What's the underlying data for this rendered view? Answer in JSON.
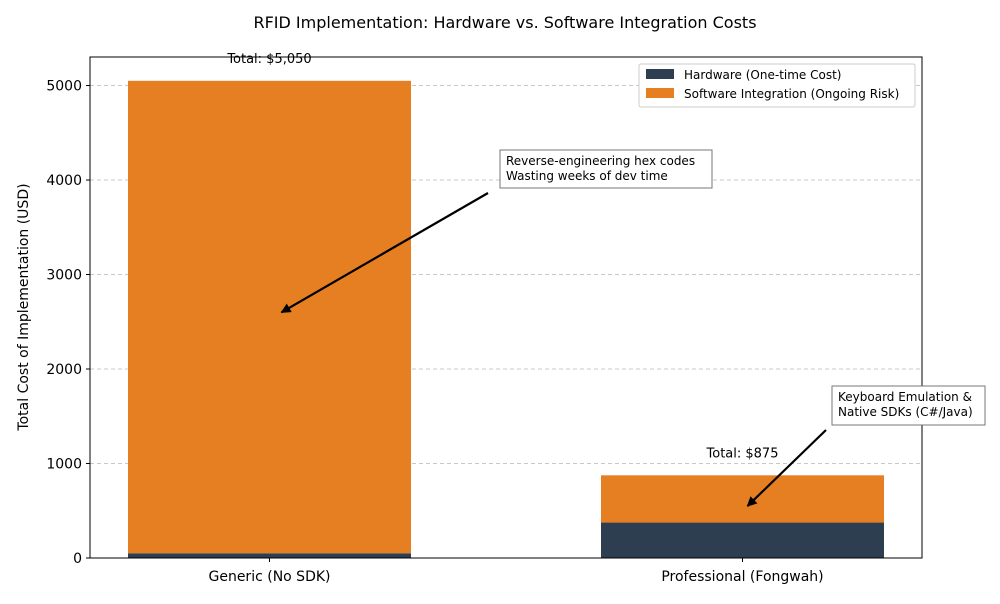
{
  "chart_data": {
    "type": "bar",
    "stacked": true,
    "title": "RFID Implementation: Hardware vs. Software Integration Costs",
    "xlabel": "",
    "ylabel": "Total Cost of Implementation (USD)",
    "categories": [
      "Generic (No SDK)",
      "Professional (Fongwah)"
    ],
    "series": [
      {
        "name": "Hardware (One-time Cost)",
        "values": [
          50,
          375
        ],
        "color": "#2c3e50"
      },
      {
        "name": "Software Integration (Ongoing Risk)",
        "values": [
          5000,
          500
        ],
        "color": "#e67e22"
      }
    ],
    "totals": [
      "Total: $5,050",
      "Total: $875"
    ],
    "ylim": [
      0,
      5302
    ],
    "yticks": [
      0,
      1000,
      2000,
      3000,
      4000,
      5000
    ],
    "grid": "y dashed",
    "legend": "top-right",
    "annotations": [
      {
        "lines": [
          "Reverse-engineering hex codes",
          "Wasting weeks of dev time"
        ],
        "target": {
          "category": 0,
          "y": 2600
        }
      },
      {
        "lines": [
          "Keyboard Emulation &",
          "Native SDKs (C#/Java)"
        ],
        "target": {
          "category": 1,
          "y": 550
        }
      }
    ]
  }
}
